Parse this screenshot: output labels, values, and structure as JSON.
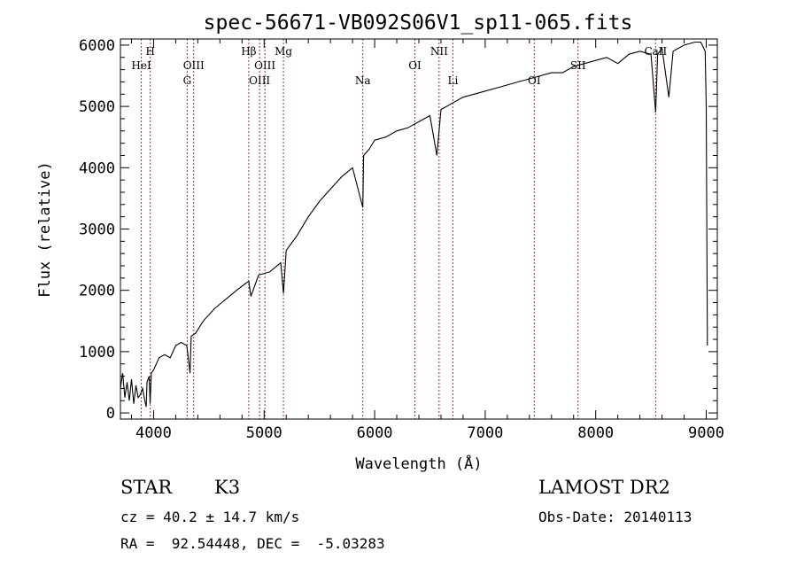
{
  "chart_data": {
    "type": "line",
    "title": "spec-56671-VB092S06V1_sp11-065.fits",
    "xlabel": "Wavelength (Å)",
    "ylabel": "Flux (relative)",
    "xlim": [
      3700,
      9100
    ],
    "ylim": [
      -100,
      6100
    ],
    "x_ticks": [
      4000,
      5000,
      6000,
      7000,
      8000,
      9000
    ],
    "y_ticks": [
      0,
      1000,
      2000,
      3000,
      4000,
      5000,
      6000
    ],
    "grid": false,
    "series": [
      {
        "x": [
          3700,
          3720,
          3740,
          3760,
          3780,
          3800,
          3820,
          3840,
          3860,
          3880,
          3900,
          3920,
          3933,
          3940,
          3960,
          3968,
          3980,
          4000,
          4050,
          4100,
          4150,
          4200,
          4250,
          4300,
          4330,
          4340,
          4380,
          4450,
          4550,
          4650,
          4750,
          4861,
          4880,
          4950,
          5050,
          5150,
          5175,
          5200,
          5300,
          5400,
          5500,
          5600,
          5700,
          5800,
          5893,
          5900,
          5950,
          6000,
          6100,
          6200,
          6300,
          6400,
          6500,
          6563,
          6600,
          6700,
          6800,
          6900,
          7000,
          7100,
          7200,
          7300,
          7400,
          7500,
          7600,
          7700,
          7800,
          7900,
          8000,
          8100,
          8200,
          8300,
          8400,
          8500,
          8542,
          8560,
          8600,
          8662,
          8700,
          8800,
          8900,
          8950,
          8990,
          9000,
          9010
        ],
        "y": [
          400,
          650,
          250,
          500,
          200,
          550,
          150,
          450,
          250,
          300,
          400,
          200,
          100,
          500,
          600,
          150,
          650,
          700,
          900,
          950,
          900,
          1100,
          1150,
          1100,
          650,
          1250,
          1300,
          1500,
          1700,
          1850,
          2000,
          2150,
          1900,
          2250,
          2300,
          2450,
          1950,
          2650,
          2900,
          3200,
          3450,
          3650,
          3850,
          4000,
          3350,
          4200,
          4300,
          4450,
          4500,
          4600,
          4650,
          4750,
          4850,
          4200,
          4950,
          5050,
          5150,
          5200,
          5250,
          5300,
          5350,
          5400,
          5450,
          5500,
          5550,
          5550,
          5650,
          5700,
          5750,
          5800,
          5700,
          5850,
          5900,
          5850,
          4900,
          5850,
          5950,
          5150,
          5900,
          6000,
          6050,
          6050,
          5900,
          5000,
          1100
        ]
      }
    ],
    "spectral_lines": [
      {
        "label": "H",
        "x": 3970,
        "row": 1
      },
      {
        "label": "HeI",
        "x": 3889,
        "row": 2
      },
      {
        "label": "OIII",
        "x": 4363,
        "row": 2
      },
      {
        "label": "G",
        "x": 4304,
        "row": 3
      },
      {
        "label": "Hβ",
        "x": 4861,
        "row": 1
      },
      {
        "label": "Mg",
        "x": 5175,
        "row": 1
      },
      {
        "label": "OIII",
        "x": 5007,
        "row": 2
      },
      {
        "label": "OIII",
        "x": 4959,
        "row": 3
      },
      {
        "label": "Na",
        "x": 5893,
        "row": 3
      },
      {
        "label": "OI",
        "x": 6364,
        "row": 2
      },
      {
        "label": "NII",
        "x": 6583,
        "row": 1
      },
      {
        "label": "Li",
        "x": 6708,
        "row": 3
      },
      {
        "label": "OI",
        "x": 7444,
        "row": 3
      },
      {
        "label": "SII",
        "x": 7840,
        "row": 2
      },
      {
        "label": "CaII",
        "x": 8542,
        "row": 1
      }
    ]
  },
  "info": {
    "object_class": "STAR",
    "subclass": "K3",
    "survey": "LAMOST DR2",
    "redshift": "cz = 40.2 ± 14.7 km/s",
    "obs_date": "Obs-Date: 20140113",
    "coords": "RA =  92.54448, DEC =  -5.03283"
  }
}
